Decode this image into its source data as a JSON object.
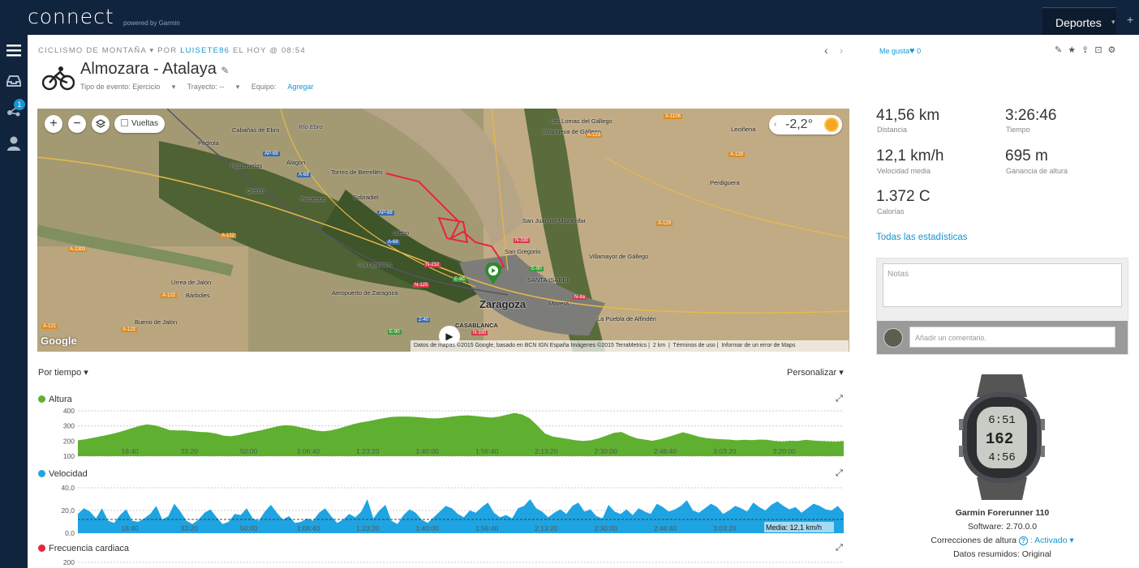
{
  "app": {
    "logo_text": "connect",
    "logo_sub": "powered by Garmin"
  },
  "topbar": {
    "sports_label": "Deportes",
    "plus_label": "+"
  },
  "sidenav": {
    "notifications_count": "1"
  },
  "activity": {
    "breadcrumb_type": "CICLISMO DE MONTAÑA",
    "breadcrumb_by": "POR",
    "breadcrumb_user": "LUISETE86",
    "breadcrumb_time": "EL HOY @ 08:54",
    "title": "Almozara - Atalaya",
    "event_type_label": "Tipo de evento: Ejercicio",
    "course_label": "Trayecto: --",
    "gear_label": "Equipo:",
    "gear_link": "Agregar"
  },
  "map": {
    "laps_label": "Vueltas",
    "temperature": "-2,2°",
    "attribution": "Datos de mapas ©2015 Google, basado en BCN IGN España Imágenes ©2015 TerraMetrics",
    "scale": "2 km",
    "terms": "Términos de uso",
    "report": "Informar de un error de Maps",
    "google": "Google",
    "places": [
      "Cabañas de Ebro",
      "Pedrola",
      "Alagón",
      "Figueruelas",
      "Torres de Berrellén",
      "Grisén",
      "Pinseque",
      "Sobradiel",
      "Utebo",
      "Garrapinillos",
      "Urrea de Jalón",
      "Aeropuerto de Zaragoza",
      "Bárboles",
      "Bueno de Jalón",
      "Zaragoza",
      "CASABLANCA",
      "San Juan de Mozarrifar",
      "San Gregorio",
      "SANTA ISABEL",
      "Movera",
      "La Puebla de Alfindén",
      "Villamayor de Gállego",
      "Villanueva de Gállego",
      "Las Lomas del Gállego",
      "Leciñena",
      "Perdiguera",
      "Río Ebro"
    ],
    "roads": [
      "AP-68",
      "A-68",
      "AP-68",
      "A-68",
      "A-122",
      "A-1303",
      "A-122",
      "A-121",
      "A-122",
      "N-232",
      "N-125",
      "E-90",
      "N-330",
      "E-90",
      "N-IIa",
      "Z-40",
      "N-330",
      "E-90",
      "A-123",
      "A-129",
      "A-129",
      "A-1106"
    ]
  },
  "charts_header": {
    "by_time": "Por tiempo",
    "customize": "Personalizar"
  },
  "chart_data": [
    {
      "type": "area",
      "title": "Altura",
      "color": "#5fb030",
      "ylim": [
        100,
        400
      ],
      "yticks": [
        "400",
        "300",
        "200",
        "100"
      ],
      "xticks": [
        "16:40",
        "33:20",
        "50:00",
        "1:06:40",
        "1:23:20",
        "1:40:00",
        "1:56:40",
        "2:13:20",
        "2:30:00",
        "2:46:40",
        "3:03:20",
        "3:20:00"
      ],
      "y": [
        205,
        212,
        222,
        232,
        242,
        254,
        268,
        285,
        300,
        310,
        304,
        290,
        272,
        270,
        270,
        265,
        260,
        258,
        250,
        236,
        232,
        240,
        252,
        262,
        272,
        285,
        297,
        305,
        302,
        292,
        282,
        270,
        265,
        270,
        282,
        297,
        312,
        324,
        332,
        342,
        352,
        360,
        362,
        362,
        360,
        356,
        350,
        350,
        356,
        363,
        368,
        370,
        365,
        360,
        355,
        362,
        374,
        386,
        376,
        350,
        302,
        250,
        230,
        222,
        214,
        205,
        200,
        205,
        218,
        236,
        255,
        260,
        236,
        218,
        210,
        202,
        212,
        226,
        242,
        258,
        245,
        230,
        220,
        215,
        212,
        210,
        205,
        208,
        206,
        210,
        208,
        200,
        197,
        202,
        200,
        208,
        204,
        200,
        198,
        196,
        200
      ]
    },
    {
      "type": "area",
      "title": "Velocidad",
      "color": "#1ea4e3",
      "ylim": [
        0,
        40
      ],
      "yticks": [
        "40,0",
        "20,0",
        "0,0"
      ],
      "xticks": [
        "16:40",
        "33:20",
        "50:00",
        "1:06:40",
        "1:23:20",
        "1:40:00",
        "1:56:40",
        "2:13:20",
        "2:30:00",
        "2:46:40",
        "3:03:20",
        "3:20:00"
      ],
      "mean_label": "Media: 12,1 km/h",
      "mean": 12.1,
      "y": [
        17,
        22,
        19,
        13,
        22,
        11,
        9,
        16,
        21,
        11,
        10,
        13,
        17,
        24,
        12,
        15,
        26,
        19,
        11,
        8,
        12,
        18,
        21,
        14,
        8,
        10,
        17,
        16,
        22,
        13,
        11,
        19,
        25,
        18,
        12,
        15,
        9,
        10,
        13,
        11,
        18,
        22,
        15,
        9,
        12,
        17,
        14,
        19,
        30,
        13,
        20,
        25,
        11,
        8,
        16,
        21,
        18,
        12,
        9,
        14,
        19,
        24,
        22,
        17,
        14,
        20,
        18,
        23,
        27,
        18,
        14,
        16,
        13,
        22,
        24,
        30,
        22,
        19,
        14,
        18,
        21,
        17,
        24,
        27,
        19,
        21,
        15,
        13,
        25,
        19,
        17,
        21,
        16,
        22,
        19,
        17,
        26,
        23,
        19,
        21,
        24,
        29,
        20,
        18,
        22,
        26,
        23,
        17,
        20,
        24,
        22,
        19,
        27,
        23,
        20,
        25,
        28,
        24,
        21,
        23,
        18,
        22,
        26,
        24,
        21,
        20,
        24,
        18
      ]
    },
    {
      "type": "area",
      "title": "Frecuencia cardiaca",
      "color": "#e8253c",
      "yticks": [
        "200"
      ]
    }
  ],
  "stats": [
    {
      "value": "41,56 km",
      "label": "Distancia"
    },
    {
      "value": "3:26:46",
      "label": "Tiempo"
    },
    {
      "value": "12,1 km/h",
      "label": "Velocidad media"
    },
    {
      "value": "695 m",
      "label": "Ganancia de altura"
    },
    {
      "value": "1.372 C",
      "label": "Calorías"
    }
  ],
  "social": {
    "likes_label": "Me gusta",
    "likes_count": "0"
  },
  "all_stats_link": "Todas las estadísticas",
  "notes": {
    "placeholder": "Notas",
    "comment_placeholder": "Añadir un comentario."
  },
  "device": {
    "name": "Garmin Forerunner 110",
    "software": "Software: 2.70.0.0",
    "corrections_label": "Correcciones de altura",
    "corrections_value": ": Activado",
    "summary": "Datos resumidos: Original",
    "watch_top": "6:51",
    "watch_mid": "162",
    "watch_bot": "4:56"
  }
}
